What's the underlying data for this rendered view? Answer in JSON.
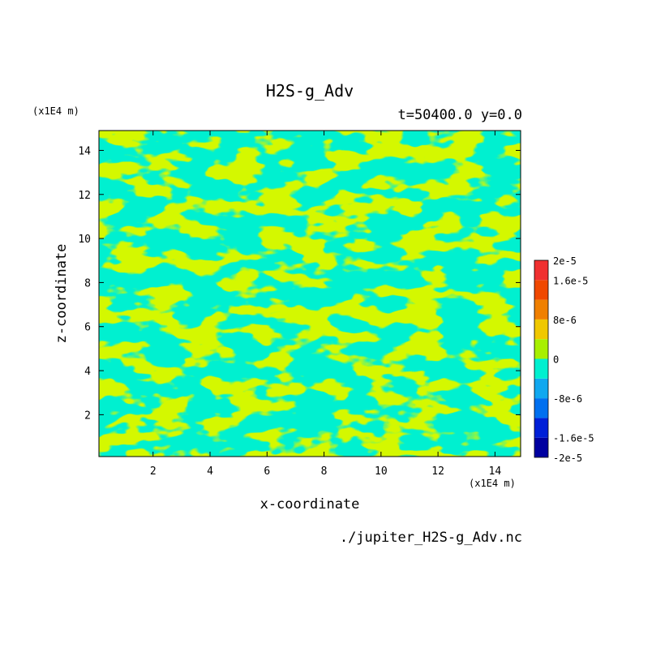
{
  "chart_data": {
    "type": "heatmap",
    "title": "H2S-g_Adv",
    "subtitle": "t=50400.0 y=0.0",
    "xlabel": "x-coordinate",
    "ylabel": "z-coordinate",
    "x_unit": "(x1E4 m)",
    "y_unit": "(x1E4 m)",
    "xlim": [
      0.1,
      14.9
    ],
    "ylim": [
      0.1,
      14.9
    ],
    "x_ticks": [
      2,
      4,
      6,
      8,
      10,
      12,
      14
    ],
    "y_ticks": [
      2,
      4,
      6,
      8,
      10,
      12,
      14
    ],
    "x_tick_labels": [
      "2",
      "4",
      "6",
      "8",
      "10",
      "12",
      "14"
    ],
    "y_tick_labels": [
      "2",
      "4",
      "6",
      "8",
      "10",
      "12",
      "14"
    ],
    "colorbar": {
      "levels": [
        -2e-05,
        -1.6e-05,
        -1.2e-05,
        -8e-06,
        -4e-06,
        0,
        4e-06,
        8e-06,
        1.2e-05,
        1.6e-05,
        2e-05
      ],
      "colors": [
        "#0000a0",
        "#0020d8",
        "#0070f0",
        "#10a8f0",
        "#00f0d0",
        "#a8f000",
        "#f0c800",
        "#f08000",
        "#f04800",
        "#f03030"
      ],
      "labels": [
        {
          "value": 2e-05,
          "text": "2e-5"
        },
        {
          "value": 1.6e-05,
          "text": "1.6e-5"
        },
        {
          "value": 8e-06,
          "text": "8e-6"
        },
        {
          "value": 0,
          "text": "0"
        },
        {
          "value": -8e-06,
          "text": "-8e-6"
        },
        {
          "value": -1.6e-05,
          "text": "-1.6e-5"
        },
        {
          "value": -2e-05,
          "text": "-2e-5"
        }
      ]
    },
    "field_description": "values alternate between the (-4e-6, 0) band (cyan) and the (0, 4e-6) band (green); no other bands occupied"
  },
  "source_file": "./jupiter_H2S-g_Adv.nc"
}
